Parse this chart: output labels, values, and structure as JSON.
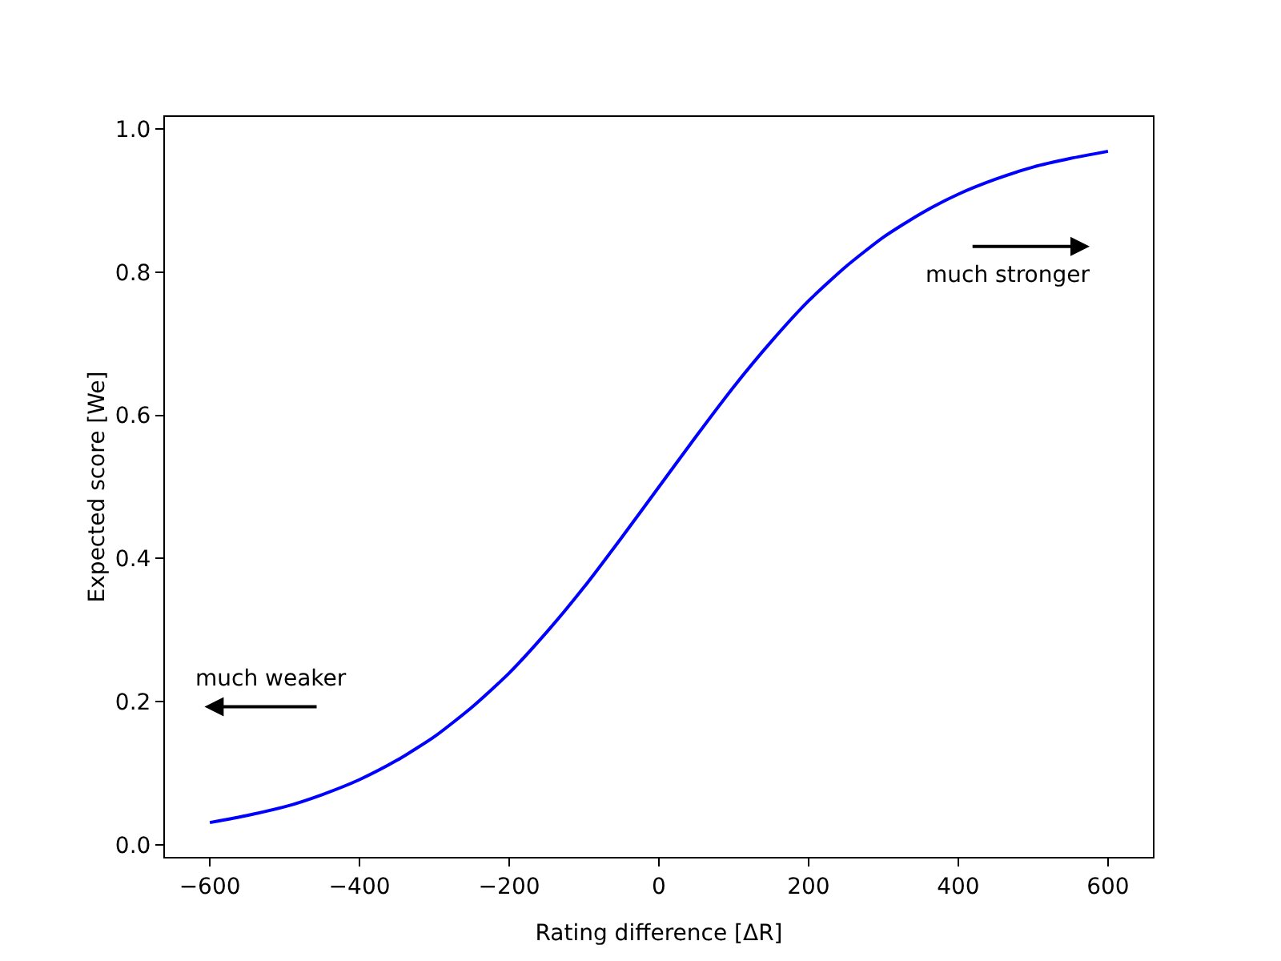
{
  "chart_data": {
    "type": "line",
    "xlabel": "Rating difference [ΔR]",
    "ylabel": "Expected score [We]",
    "x": [
      -600,
      -550,
      -500,
      -450,
      -400,
      -350,
      -300,
      -250,
      -200,
      -150,
      -100,
      -50,
      0,
      50,
      100,
      150,
      200,
      250,
      300,
      350,
      400,
      450,
      500,
      550,
      600
    ],
    "series": [
      {
        "color": "#0000ff",
        "values": [
          0.031,
          0.041,
          0.053,
          0.07,
          0.091,
          0.118,
          0.151,
          0.192,
          0.24,
          0.297,
          0.36,
          0.429,
          0.5,
          0.571,
          0.64,
          0.703,
          0.76,
          0.808,
          0.849,
          0.882,
          0.909,
          0.93,
          0.947,
          0.959,
          0.969
        ]
      }
    ],
    "xlim": [
      -660,
      660
    ],
    "ylim": [
      -0.017,
      1.017
    ],
    "xticks": [
      {
        "value": -600,
        "label": "−600"
      },
      {
        "value": -400,
        "label": "−400"
      },
      {
        "value": -200,
        "label": "−200"
      },
      0,
      200,
      400,
      600
    ],
    "yticks": [
      {
        "value": 0,
        "label": "0.0"
      },
      0.2,
      0.4,
      0.6,
      0.8,
      {
        "value": 1,
        "label": "1.0"
      }
    ],
    "annotations": [
      "much stronger",
      "much weaker"
    ],
    "grid": false,
    "marker": "none",
    "line_style": "solid"
  }
}
